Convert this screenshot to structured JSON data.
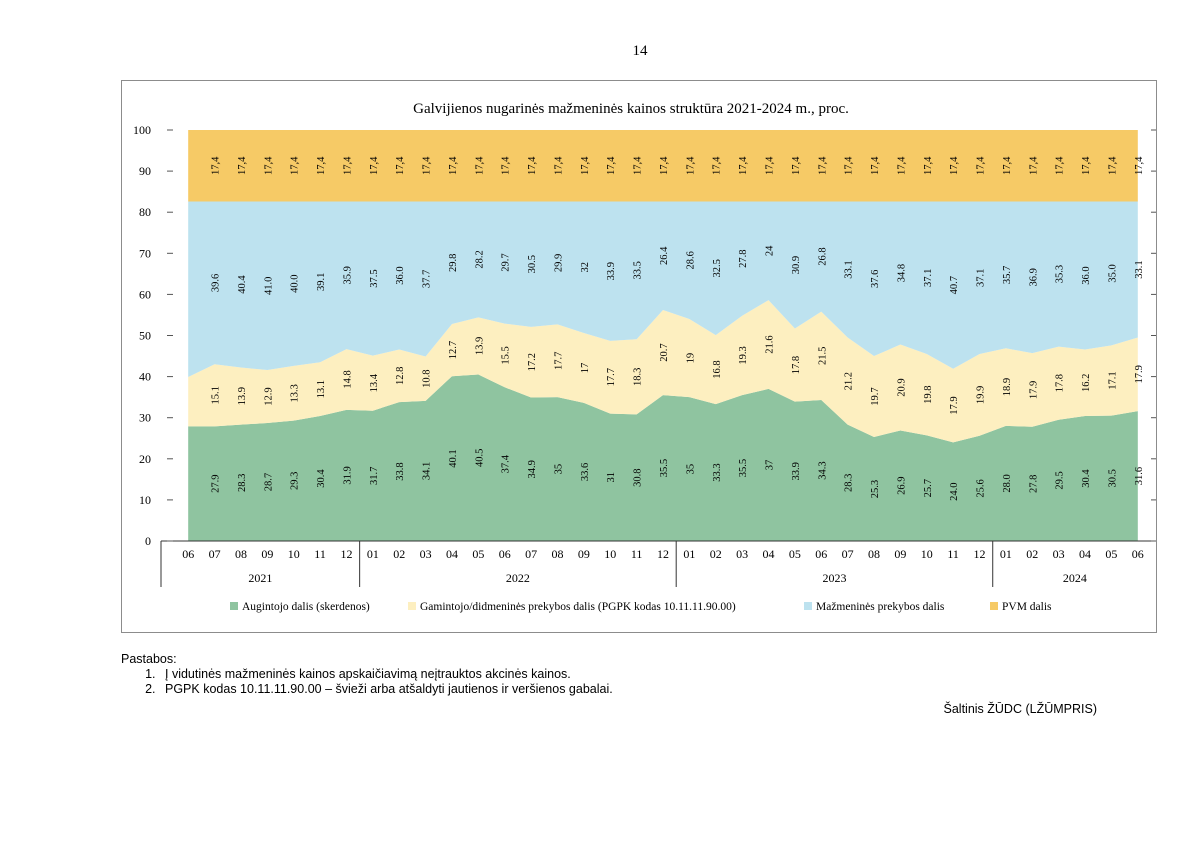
{
  "page_number": "14",
  "colors": {
    "augintojo": "#8fc4a0",
    "gamintojo": "#fdefc0",
    "mazmenines": "#bde2ef",
    "pvm": "#f6ca66"
  },
  "chart_data": {
    "type": "area",
    "stacked": true,
    "title": "Galvijienos nugarinės mažmeninės kainos struktūra 2021-2024 m., proc.",
    "ylim": [
      0,
      100
    ],
    "yticks": [
      "0",
      "10",
      "20",
      "30",
      "40",
      "50",
      "60",
      "70",
      "80",
      "90",
      "100"
    ],
    "x": [
      "06",
      "07",
      "08",
      "09",
      "10",
      "11",
      "12",
      "01",
      "02",
      "03",
      "04",
      "05",
      "06",
      "07",
      "08",
      "09",
      "10",
      "11",
      "12",
      "01",
      "02",
      "03",
      "04",
      "05",
      "06",
      "07",
      "08",
      "09",
      "10",
      "11",
      "12",
      "01",
      "02",
      "03",
      "04",
      "05",
      "06"
    ],
    "year_groups": [
      {
        "label": "2021",
        "count": 7
      },
      {
        "label": "2022",
        "count": 12
      },
      {
        "label": "2023",
        "count": 12
      },
      {
        "label": "2024",
        "count": 6
      }
    ],
    "series": [
      {
        "name": "Augintojo dalis (skerdenos)",
        "values": [
          27.9,
          27.9,
          28.3,
          28.7,
          29.3,
          30.4,
          31.9,
          31.7,
          33.8,
          34.1,
          40.1,
          40.5,
          37.4,
          34.9,
          35,
          33.6,
          31,
          30.8,
          35.5,
          35,
          33.3,
          35.5,
          37,
          33.9,
          34.3,
          28.3,
          25.3,
          26.9,
          25.7,
          24.0,
          25.6,
          28.0,
          27.8,
          29.5,
          30.4,
          30.5,
          31.6
        ],
        "labels": [
          "",
          "27.9",
          "28.3",
          "28.7",
          "29.3",
          "30.4",
          "31.9",
          "31.7",
          "33.8",
          "34.1",
          "40.1",
          "40.5",
          "37.4",
          "34.9",
          "35",
          "33.6",
          "31",
          "30.8",
          "35.5",
          "35",
          "33.3",
          "35.5",
          "37",
          "33.9",
          "34.3",
          "28.3",
          "25.3",
          "26.9",
          "25.7",
          "24.0",
          "25.6",
          "28.0",
          "27.8",
          "29.5",
          "30.4",
          "30.5",
          "31.6"
        ]
      },
      {
        "name": "Gamintojo/didmeninės prekybos dalis (PGPK kodas 10.11.11.90.00)",
        "values": [
          12.0,
          15.1,
          13.9,
          12.9,
          13.3,
          13.1,
          14.8,
          13.4,
          12.8,
          10.8,
          12.7,
          13.9,
          15.5,
          17.2,
          17.7,
          17,
          17.7,
          18.3,
          20.7,
          19,
          16.8,
          19.3,
          21.6,
          17.8,
          21.5,
          21.2,
          19.7,
          20.9,
          19.8,
          17.9,
          19.9,
          18.9,
          17.9,
          17.8,
          16.2,
          17.1,
          17.9
        ],
        "labels": [
          "",
          "15.1",
          "13.9",
          "12.9",
          "13.3",
          "13.1",
          "14.8",
          "13.4",
          "12.8",
          "10.8",
          "12.7",
          "13.9",
          "15.5",
          "17.2",
          "17.7",
          "17",
          "17.7",
          "18.3",
          "20.7",
          "19",
          "16.8",
          "19.3",
          "21.6",
          "17.8",
          "21.5",
          "21.2",
          "19.7",
          "20.9",
          "19.8",
          "17.9",
          "19.9",
          "18.9",
          "17.9",
          "17.8",
          "16.2",
          "17.1",
          "17.9"
        ]
      },
      {
        "name": "Mažmeninės prekybos dalis",
        "values": [
          42.7,
          39.6,
          40.4,
          41.0,
          40.0,
          39.1,
          35.9,
          37.5,
          36.0,
          37.7,
          29.8,
          28.2,
          29.7,
          30.5,
          29.9,
          32,
          33.9,
          33.5,
          26.4,
          28.6,
          32.5,
          27.8,
          24,
          30.9,
          26.8,
          33.1,
          37.6,
          34.8,
          37.1,
          40.7,
          37.1,
          35.7,
          36.9,
          35.3,
          36.0,
          35.0,
          33.1
        ],
        "labels": [
          "",
          "39.6",
          "40.4",
          "41.0",
          "40.0",
          "39.1",
          "35.9",
          "37.5",
          "36.0",
          "37.7",
          "29.8",
          "28.2",
          "29.7",
          "30.5",
          "29.9",
          "32",
          "33.9",
          "33.5",
          "26.4",
          "28.6",
          "32.5",
          "27.8",
          "24",
          "30.9",
          "26.8",
          "33.1",
          "37.6",
          "34.8",
          "37.1",
          "40.7",
          "37.1",
          "35.7",
          "36.9",
          "35.3",
          "36.0",
          "35.0",
          "33.1"
        ]
      },
      {
        "name": "PVM dalis",
        "values": [
          17.4,
          17.4,
          17.4,
          17.4,
          17.4,
          17.4,
          17.4,
          17.4,
          17.4,
          17.4,
          17.4,
          17.4,
          17.4,
          17.4,
          17.4,
          17.4,
          17.4,
          17.4,
          17.4,
          17.4,
          17.4,
          17.4,
          17.4,
          17.4,
          17.4,
          17.4,
          17.4,
          17.4,
          17.4,
          17.4,
          17.4,
          17.4,
          17.4,
          17.4,
          17.4,
          17.4,
          17.4
        ],
        "labels": [
          "",
          "17,4",
          "17,4",
          "17,4",
          "17,4",
          "17,4",
          "17,4",
          "17,4",
          "17,4",
          "17,4",
          "17,4",
          "17,4",
          "17,4",
          "17,4",
          "17,4",
          "17,4",
          "17,4",
          "17,4",
          "17,4",
          "17,4",
          "17,4",
          "17,4",
          "17,4",
          "17,4",
          "17,4",
          "17,4",
          "17,4",
          "17,4",
          "17,4",
          "17,4",
          "17,4",
          "17,4",
          "17,4",
          "17,4",
          "17,4",
          "17,4",
          "17,4"
        ]
      }
    ],
    "legend": "bottom"
  },
  "notes": {
    "heading": "Pastabos:",
    "items": [
      "Į vidutinės mažmeninės kainos apskaičiavimą neįtrauktos akcinės kainos.",
      "PGPK kodas 10.11.11.90.00 – švieži arba atšaldyti jautienos ir veršienos gabalai."
    ]
  },
  "source": "Šaltinis ŽŪDC (LŽŪMPRIS)"
}
